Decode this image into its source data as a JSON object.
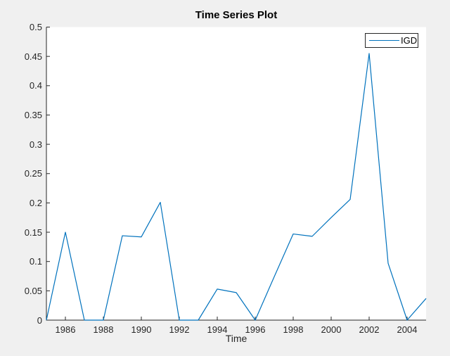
{
  "window": {
    "figure_background": "#f0f0f0"
  },
  "chart_data": {
    "type": "line",
    "title": "Time Series Plot",
    "xlabel": "Time",
    "ylabel": "",
    "legend": [
      "IGD"
    ],
    "legend_position": "top-right",
    "grid": false,
    "box": false,
    "xlim": [
      1985,
      2005
    ],
    "ylim": [
      0,
      0.5
    ],
    "xticks": [
      1986,
      1988,
      1990,
      1992,
      1994,
      1996,
      1998,
      2000,
      2002,
      2004
    ],
    "yticks": [
      0,
      0.05,
      0.1,
      0.15,
      0.2,
      0.25,
      0.3,
      0.35,
      0.4,
      0.45,
      0.5
    ],
    "ytick_labels": [
      "0",
      "0.05",
      "0.1",
      "0.15",
      "0.2",
      "0.25",
      "0.3",
      "0.35",
      "0.4",
      "0.45",
      "0.5"
    ],
    "x": [
      1985,
      1986,
      1987,
      1988,
      1989,
      1990,
      1991,
      1992,
      1993,
      1994,
      1995,
      1996,
      1997,
      1998,
      1999,
      2000,
      2001,
      2002,
      2003,
      2004,
      2005
    ],
    "series": [
      {
        "name": "IGD",
        "values": [
          0,
          0.15,
          0,
          0,
          0.144,
          0.142,
          0.201,
          0,
          0,
          0.053,
          0.047,
          0,
          0.074,
          0.147,
          0.143,
          0.175,
          0.206,
          0.455,
          0.097,
          0,
          0.037
        ]
      }
    ],
    "colors": {
      "line": "#0072BD",
      "axis": "#262626",
      "plot_background": "#ffffff",
      "figure_background": "#f0f0f0"
    }
  }
}
